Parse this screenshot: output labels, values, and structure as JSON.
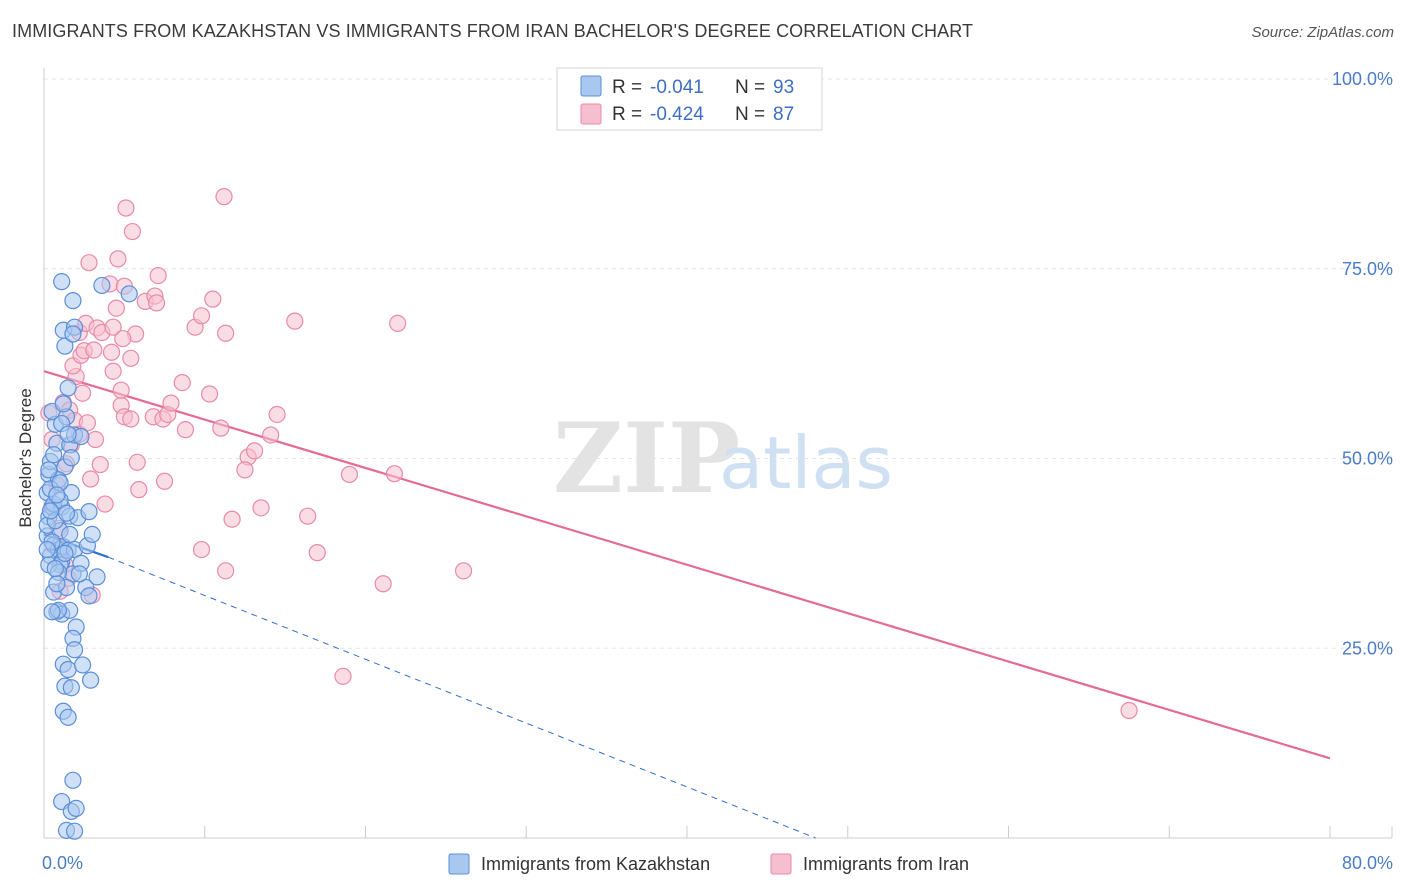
{
  "header": {
    "title": "IMMIGRANTS FROM KAZAKHSTAN VS IMMIGRANTS FROM IRAN BACHELOR'S DEGREE CORRELATION CHART",
    "source": "Source: ZipAtlas.com"
  },
  "watermark": {
    "zip": "ZIP",
    "atlas": "atlas"
  },
  "legend": {
    "series1": {
      "r_label": "R =",
      "r_value": "-0.041",
      "n_label": "N =",
      "n_value": "93"
    },
    "series2": {
      "r_label": "R =",
      "r_value": "-0.424",
      "n_label": "N =",
      "n_value": "87"
    }
  },
  "colors": {
    "blue_fill": "#a9c8f0",
    "blue_stroke": "#5b8fd8",
    "blue_line": "#2f6fd0",
    "pink_fill": "#f6bfd0",
    "pink_stroke": "#e98aa8",
    "pink_line": "#e46b95"
  },
  "chart_data": {
    "type": "scatter",
    "title": "IMMIGRANTS FROM KAZAKHSTAN VS IMMIGRANTS FROM IRAN BACHELOR'S DEGREE CORRELATION CHART",
    "xlabel": "",
    "ylabel": "Bachelor's Degree",
    "xlim": [
      0,
      80
    ],
    "ylim": [
      0,
      100
    ],
    "x_ticks": [
      0,
      80
    ],
    "x_tick_labels": [
      "0.0%",
      "80.0%"
    ],
    "y_ticks": [
      25,
      50,
      75,
      100
    ],
    "y_tick_labels": [
      "25.0%",
      "50.0%",
      "75.0%",
      "100.0%"
    ],
    "grid": true,
    "legend_position": "top-center",
    "series": [
      {
        "name": "Immigrants from Kazakhstan",
        "color": "#a9c8f0",
        "r": -0.041,
        "n": 93,
        "trend": {
          "x": [
            0,
            4
          ],
          "y": [
            40,
            37
          ]
        },
        "trend_extension": {
          "x": [
            4,
            48
          ],
          "y": [
            37,
            0
          ]
        },
        "points": [
          [
            0.2,
            39.8
          ],
          [
            0.3,
            42.3
          ],
          [
            0.2,
            45.5
          ],
          [
            0.4,
            37.2
          ],
          [
            0.3,
            47.9
          ],
          [
            0.5,
            43.6
          ],
          [
            0.6,
            38.6
          ],
          [
            0.4,
            49.6
          ],
          [
            0.8,
            52.0
          ],
          [
            0.7,
            54.5
          ],
          [
            0.5,
            56.2
          ],
          [
            0.9,
            38.0
          ],
          [
            1.0,
            40.5
          ],
          [
            1.1,
            36.4
          ],
          [
            0.6,
            32.4
          ],
          [
            0.8,
            29.8
          ],
          [
            1.2,
            66.9
          ],
          [
            1.1,
            73.3
          ],
          [
            1.3,
            64.8
          ],
          [
            1.5,
            59.3
          ],
          [
            1.8,
            70.8
          ],
          [
            1.4,
            55.5
          ],
          [
            1.6,
            51.8
          ],
          [
            1.9,
            53.1
          ],
          [
            1.3,
            48.9
          ],
          [
            1.7,
            45.5
          ],
          [
            1.1,
            43.6
          ],
          [
            1.6,
            42.4
          ],
          [
            2.1,
            42.2
          ],
          [
            1.2,
            38.4
          ],
          [
            1.5,
            37.9
          ],
          [
            1.9,
            38.0
          ],
          [
            1.0,
            36.0
          ],
          [
            1.8,
            34.8
          ],
          [
            2.3,
            36.2
          ],
          [
            1.4,
            33.0
          ],
          [
            2.6,
            33.0
          ],
          [
            1.1,
            29.5
          ],
          [
            1.6,
            30.0
          ],
          [
            2.0,
            27.8
          ],
          [
            1.8,
            26.3
          ],
          [
            1.9,
            24.8
          ],
          [
            1.2,
            22.9
          ],
          [
            1.5,
            22.2
          ],
          [
            2.4,
            22.8
          ],
          [
            1.3,
            20.0
          ],
          [
            1.7,
            19.8
          ],
          [
            2.9,
            20.8
          ],
          [
            1.2,
            16.7
          ],
          [
            1.5,
            15.9
          ],
          [
            1.8,
            7.6
          ],
          [
            1.1,
            4.8
          ],
          [
            1.7,
            3.5
          ],
          [
            2.0,
            3.9
          ],
          [
            1.4,
            1.0
          ],
          [
            1.9,
            0.9
          ],
          [
            3.6,
            72.8
          ],
          [
            5.3,
            71.7
          ],
          [
            1.9,
            67.3
          ],
          [
            1.8,
            66.4
          ],
          [
            2.3,
            52.9
          ],
          [
            1.7,
            50.1
          ],
          [
            2.8,
            43.0
          ],
          [
            0.6,
            44.0
          ],
          [
            0.9,
            47.2
          ],
          [
            2.8,
            31.9
          ],
          [
            3.3,
            34.4
          ],
          [
            2.7,
            38.5
          ],
          [
            3.0,
            40.0
          ],
          [
            0.3,
            36.0
          ],
          [
            0.2,
            41.2
          ],
          [
            0.4,
            46.0
          ],
          [
            0.7,
            41.8
          ],
          [
            0.5,
            39.0
          ],
          [
            0.9,
            35.0
          ],
          [
            1.0,
            44.5
          ],
          [
            0.3,
            48.5
          ],
          [
            0.6,
            50.5
          ],
          [
            0.8,
            33.5
          ],
          [
            1.2,
            57.2
          ],
          [
            2.2,
            34.8
          ],
          [
            1.4,
            42.8
          ],
          [
            0.9,
            30.0
          ],
          [
            1.0,
            46.8
          ],
          [
            1.6,
            40.0
          ],
          [
            1.3,
            37.5
          ],
          [
            0.4,
            43.1
          ],
          [
            0.7,
            35.5
          ],
          [
            0.5,
            29.8
          ],
          [
            1.1,
            54.6
          ],
          [
            0.8,
            45.2
          ],
          [
            1.5,
            53.2
          ],
          [
            0.2,
            38.0
          ]
        ]
      },
      {
        "name": "Immigrants from Iran",
        "color": "#f6bfd0",
        "r": -0.424,
        "n": 87,
        "trend": {
          "x": [
            0,
            80
          ],
          "y": [
            61.5,
            10.5
          ]
        },
        "points": [
          [
            0.3,
            56.0
          ],
          [
            0.5,
            52.5
          ],
          [
            0.8,
            46.5
          ],
          [
            0.6,
            43.5
          ],
          [
            0.9,
            40.8
          ],
          [
            1.1,
            38.2
          ],
          [
            1.3,
            36.0
          ],
          [
            1.5,
            34.2
          ],
          [
            1.2,
            57.4
          ],
          [
            1.6,
            56.4
          ],
          [
            1.9,
            55.0
          ],
          [
            2.2,
            53.2
          ],
          [
            2.0,
            60.8
          ],
          [
            1.8,
            62.2
          ],
          [
            2.3,
            63.6
          ],
          [
            2.5,
            64.2
          ],
          [
            1.4,
            49.3
          ],
          [
            1.7,
            51.8
          ],
          [
            2.4,
            58.6
          ],
          [
            2.7,
            54.7
          ],
          [
            2.9,
            47.3
          ],
          [
            3.2,
            52.5
          ],
          [
            3.5,
            49.2
          ],
          [
            3.8,
            44.0
          ],
          [
            2.2,
            66.6
          ],
          [
            2.6,
            67.8
          ],
          [
            3.3,
            67.2
          ],
          [
            3.6,
            66.6
          ],
          [
            3.1,
            64.3
          ],
          [
            4.3,
            67.3
          ],
          [
            4.5,
            69.8
          ],
          [
            4.2,
            64.0
          ],
          [
            2.8,
            75.8
          ],
          [
            4.6,
            76.3
          ],
          [
            4.1,
            73.0
          ],
          [
            5.0,
            72.7
          ],
          [
            5.7,
            66.4
          ],
          [
            4.9,
            65.8
          ],
          [
            5.4,
            63.2
          ],
          [
            4.3,
            61.5
          ],
          [
            5.1,
            83.0
          ],
          [
            5.5,
            79.9
          ],
          [
            4.8,
            57.0
          ],
          [
            5.0,
            55.5
          ],
          [
            5.4,
            55.2
          ],
          [
            4.8,
            59.0
          ],
          [
            5.8,
            49.5
          ],
          [
            5.9,
            45.9
          ],
          [
            6.3,
            70.7
          ],
          [
            6.9,
            71.4
          ],
          [
            7.1,
            74.1
          ],
          [
            7.0,
            70.5
          ],
          [
            6.8,
            55.5
          ],
          [
            7.4,
            55.2
          ],
          [
            7.7,
            55.8
          ],
          [
            7.9,
            57.3
          ],
          [
            8.6,
            60.0
          ],
          [
            8.8,
            53.8
          ],
          [
            9.4,
            67.3
          ],
          [
            9.8,
            68.8
          ],
          [
            10.5,
            71.0
          ],
          [
            10.3,
            58.5
          ],
          [
            11.0,
            54.0
          ],
          [
            11.3,
            66.5
          ],
          [
            11.2,
            84.5
          ],
          [
            12.7,
            50.2
          ],
          [
            12.5,
            48.5
          ],
          [
            13.1,
            51.0
          ],
          [
            14.1,
            53.1
          ],
          [
            14.5,
            55.8
          ],
          [
            15.6,
            68.1
          ],
          [
            11.3,
            35.2
          ],
          [
            11.7,
            42.0
          ],
          [
            13.5,
            43.5
          ],
          [
            16.4,
            42.4
          ],
          [
            17.0,
            37.6
          ],
          [
            18.6,
            21.3
          ],
          [
            19.0,
            47.9
          ],
          [
            21.1,
            33.5
          ],
          [
            21.8,
            48.0
          ],
          [
            22.0,
            67.8
          ],
          [
            26.1,
            35.2
          ],
          [
            1.0,
            32.5
          ],
          [
            3.0,
            32.0
          ],
          [
            7.5,
            47.0
          ],
          [
            9.8,
            38.0
          ],
          [
            67.5,
            16.8
          ]
        ]
      }
    ]
  },
  "bottom_legend": {
    "items": [
      "Immigrants from Kazakhstan",
      "Immigrants from Iran"
    ]
  }
}
